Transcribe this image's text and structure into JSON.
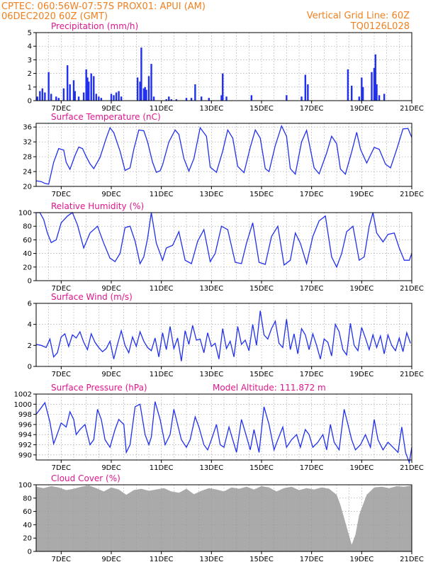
{
  "header": {
    "line1_left": "CPTEC:   060:56W-07:57S   PROX01: APUI (AM)",
    "line2_left": "06DEC2020 60Z (GMT)",
    "line1_right": "Vertical Grid Line: 60Z",
    "line2_right": "TQ0126L028"
  },
  "colors": {
    "header_text": "#f08020",
    "panel_title": "#e0168c",
    "series": "#2030ee",
    "cloud": "#aaaaaa",
    "grid": "#999999"
  },
  "x_axis": {
    "range_days": [
      6,
      21
    ],
    "tick_labels": [
      "7DEC",
      "9DEC",
      "11DEC",
      "13DEC",
      "15DEC",
      "17DEC",
      "19DEC",
      "21DEC"
    ],
    "tick_days": [
      7,
      9,
      11,
      13,
      15,
      17,
      19,
      21
    ],
    "grid": "dotted, every 12h"
  },
  "chart_data": [
    {
      "type": "bar",
      "title": "Precipitation (mm/h)",
      "ylim": [
        0,
        5
      ],
      "yticks": [
        "0",
        "1",
        "2",
        "3",
        "4",
        "5"
      ],
      "x_unit": "day of December 2020",
      "x": [
        6.05,
        6.15,
        6.25,
        6.35,
        6.5,
        6.6,
        6.8,
        6.9,
        7.1,
        7.25,
        7.35,
        7.5,
        7.55,
        7.7,
        7.9,
        8.0,
        8.05,
        8.1,
        8.2,
        8.3,
        8.4,
        8.5,
        8.6,
        9.0,
        9.1,
        9.2,
        9.3,
        9.4,
        10.05,
        10.15,
        10.2,
        10.3,
        10.35,
        10.4,
        10.5,
        10.6,
        10.7,
        11.2,
        11.3,
        11.4,
        11.6,
        12.0,
        12.2,
        12.35,
        12.6,
        12.9,
        13.4,
        13.45,
        13.6,
        14.6,
        16.0,
        16.6,
        16.75,
        16.85,
        18.45,
        18.6,
        18.9,
        19.0,
        19.05,
        19.4,
        19.5,
        19.55,
        19.6,
        19.7,
        19.9
      ],
      "values": [
        0.3,
        0.7,
        0.9,
        0.6,
        2.1,
        0.5,
        0.3,
        0.2,
        0.9,
        2.6,
        1.2,
        1.5,
        0.7,
        0.3,
        0.6,
        2.3,
        1.7,
        1.4,
        2.0,
        1.8,
        0.5,
        0.3,
        0.2,
        0.5,
        0.4,
        0.6,
        0.7,
        0.3,
        1.7,
        1.4,
        3.9,
        0.9,
        1.0,
        0.8,
        1.8,
        2.7,
        0.3,
        0.1,
        0.3,
        0.1,
        0.1,
        0.2,
        0.2,
        1.2,
        0.3,
        0.2,
        0.4,
        2.0,
        0.3,
        0.4,
        0.4,
        0.3,
        1.9,
        1.2,
        2.3,
        1.1,
        0.3,
        1.7,
        1.0,
        2.1,
        2.4,
        3.4,
        1.2,
        0.4,
        0.5
      ]
    },
    {
      "type": "line",
      "title": "Surface Temperature (nC)",
      "ylim": [
        20,
        37
      ],
      "yticks": [
        "20",
        "24",
        "28",
        "32",
        "36"
      ],
      "x_unit": "day of December 2020",
      "series": [
        {
          "x": [
            6.0,
            6.2,
            6.35,
            6.5,
            6.7,
            6.9,
            7.1,
            7.2,
            7.35,
            7.55,
            7.7,
            7.85,
            8.0,
            8.15,
            8.3,
            8.55,
            8.8,
            8.95,
            9.1,
            9.35,
            9.55,
            9.75,
            9.9,
            10.1,
            10.3,
            10.45,
            10.65,
            10.8,
            10.95,
            11.05,
            11.3,
            11.55,
            11.7,
            11.9,
            12.1,
            12.3,
            12.55,
            12.8,
            12.95,
            13.2,
            13.45,
            13.65,
            13.85,
            14.05,
            14.3,
            14.55,
            14.75,
            14.95,
            15.15,
            15.3,
            15.55,
            15.8,
            16.0,
            16.15,
            16.35,
            16.6,
            16.8,
            17.1,
            17.3,
            17.6,
            17.8,
            18.0,
            18.15,
            18.35,
            18.6,
            18.8,
            18.95,
            19.2,
            19.5,
            19.7,
            19.95,
            20.15,
            20.4,
            20.65,
            20.85,
            21.0
          ],
          "y": [
            21.5,
            21.3,
            20.8,
            20.6,
            26.5,
            30.2,
            29.8,
            26.5,
            24.6,
            28.3,
            30.6,
            30.2,
            28.0,
            26.1,
            24.8,
            27.8,
            33.0,
            35.8,
            34.5,
            29.5,
            24.3,
            25.0,
            30.0,
            35.2,
            35.0,
            32.0,
            26.5,
            23.8,
            24.2,
            25.8,
            32.0,
            35.2,
            34.0,
            27.5,
            24.1,
            27.5,
            35.8,
            33.5,
            25.2,
            23.8,
            29.5,
            35.2,
            33.0,
            25.4,
            23.7,
            30.5,
            35.2,
            33.0,
            24.8,
            24.0,
            31.0,
            36.3,
            33.5,
            24.8,
            23.3,
            32.0,
            35.1,
            25.0,
            23.4,
            29.0,
            33.5,
            31.5,
            24.7,
            23.3,
            29.3,
            34.6,
            30.0,
            26.3,
            30.5,
            30.0,
            26.0,
            25.0,
            30.0,
            35.5,
            35.6,
            33.2
          ]
        }
      ]
    },
    {
      "type": "line",
      "title": "Relative Humidity (%)",
      "ylim": [
        0,
        100
      ],
      "yticks": [
        "0",
        "20",
        "40",
        "60",
        "80",
        "100"
      ],
      "x_unit": "day of December 2020",
      "series": [
        {
          "x": [
            6.0,
            6.15,
            6.3,
            6.45,
            6.6,
            6.8,
            7.0,
            7.25,
            7.45,
            7.65,
            7.9,
            8.15,
            8.45,
            8.7,
            8.95,
            9.15,
            9.35,
            9.55,
            9.75,
            9.95,
            10.15,
            10.3,
            10.45,
            10.6,
            10.8,
            11.05,
            11.2,
            11.45,
            11.7,
            11.95,
            12.2,
            12.45,
            12.7,
            12.95,
            13.15,
            13.4,
            13.65,
            13.95,
            14.2,
            14.4,
            14.65,
            14.9,
            15.15,
            15.4,
            15.65,
            15.9,
            16.15,
            16.35,
            16.55,
            16.8,
            17.05,
            17.3,
            17.55,
            17.8,
            18.0,
            18.2,
            18.4,
            18.65,
            18.9,
            19.1,
            19.3,
            19.45,
            19.6,
            19.85,
            20.05,
            20.3,
            20.5,
            20.7,
            20.9,
            21.0
          ],
          "y": [
            100.0,
            100.0,
            90.0,
            70.0,
            56.0,
            60.0,
            85.0,
            95.0,
            100.0,
            82.0,
            48.0,
            70.0,
            80.0,
            55.0,
            33.0,
            28.0,
            40.0,
            78.0,
            80.0,
            58.0,
            25.0,
            35.0,
            62.0,
            100.0,
            55.0,
            30.0,
            48.0,
            52.0,
            72.0,
            30.0,
            25.0,
            58.0,
            75.0,
            28.0,
            40.0,
            80.0,
            75.0,
            27.0,
            25.0,
            55.0,
            85.0,
            27.0,
            24.0,
            65.0,
            80.0,
            23.0,
            30.0,
            70.0,
            55.0,
            25.0,
            65.0,
            88.0,
            95.0,
            35.0,
            20.0,
            40.0,
            72.0,
            80.0,
            30.0,
            35.0,
            80.0,
            100.0,
            70.0,
            57.0,
            68.0,
            70.0,
            48.0,
            30.0,
            30.0,
            40.0
          ]
        }
      ]
    },
    {
      "type": "line",
      "title": "Surface Wind (m/s)",
      "ylim": [
        0,
        6
      ],
      "yticks": [
        "0",
        "2",
        "4",
        "6"
      ],
      "x_unit": "day of December 2020",
      "series": [
        {
          "x": [
            6.0,
            6.2,
            6.4,
            6.55,
            6.7,
            6.85,
            7.0,
            7.15,
            7.3,
            7.45,
            7.6,
            7.75,
            7.9,
            8.05,
            8.2,
            8.35,
            8.5,
            8.65,
            8.8,
            8.95,
            9.1,
            9.25,
            9.4,
            9.55,
            9.7,
            9.85,
            10.0,
            10.15,
            10.3,
            10.45,
            10.6,
            10.75,
            10.9,
            11.05,
            11.2,
            11.35,
            11.5,
            11.65,
            11.8,
            11.95,
            12.1,
            12.25,
            12.4,
            12.55,
            12.7,
            12.85,
            13.0,
            13.15,
            13.3,
            13.45,
            13.6,
            13.75,
            13.9,
            14.05,
            14.2,
            14.35,
            14.5,
            14.65,
            14.8,
            14.95,
            15.1,
            15.25,
            15.4,
            15.55,
            15.7,
            15.85,
            16.0,
            16.15,
            16.3,
            16.45,
            16.6,
            16.75,
            16.9,
            17.05,
            17.2,
            17.35,
            17.5,
            17.65,
            17.8,
            17.95,
            18.1,
            18.25,
            18.4,
            18.55,
            18.7,
            18.85,
            19.0,
            19.15,
            19.3,
            19.45,
            19.6,
            19.75,
            19.9,
            20.05,
            20.2,
            20.35,
            20.5,
            20.65,
            20.8,
            20.95
          ],
          "y": [
            2.1,
            2.0,
            1.8,
            2.6,
            0.9,
            1.3,
            2.8,
            3.1,
            1.9,
            3.0,
            2.7,
            3.3,
            2.3,
            1.6,
            3.1,
            2.3,
            1.8,
            1.4,
            1.7,
            2.4,
            0.7,
            2.1,
            3.4,
            2.0,
            1.3,
            2.8,
            1.9,
            3.3,
            2.4,
            1.8,
            1.5,
            2.7,
            0.9,
            3.2,
            1.6,
            3.8,
            1.7,
            2.7,
            0.5,
            3.4,
            2.1,
            3.9,
            2.5,
            2.6,
            1.3,
            3.2,
            1.9,
            2.2,
            0.7,
            3.6,
            1.7,
            2.4,
            0.9,
            3.8,
            2.1,
            2.5,
            1.5,
            4.0,
            2.0,
            5.3,
            3.0,
            2.6,
            3.6,
            4.3,
            2.2,
            1.8,
            4.5,
            1.6,
            3.1,
            1.2,
            3.6,
            3.0,
            1.6,
            3.1,
            2.0,
            0.7,
            2.6,
            2.3,
            1.0,
            4.0,
            3.3,
            1.6,
            1.1,
            4.1,
            2.0,
            1.5,
            3.7,
            2.7,
            1.6,
            3.0,
            1.8,
            2.9,
            1.2,
            3.0,
            2.0,
            1.5,
            2.7,
            1.4,
            3.2,
            2.2
          ]
        }
      ]
    },
    {
      "type": "line",
      "title": "Surface Pressure (hPa)",
      "annotation": "Model Altitude: 111.872 m",
      "ylim": [
        989,
        1002
      ],
      "yticks": [
        "990",
        "992",
        "994",
        "996",
        "998",
        "1000",
        "1002"
      ],
      "x_unit": "day of December 2020",
      "series": [
        {
          "x": [
            6.0,
            6.2,
            6.35,
            6.55,
            6.7,
            6.8,
            7.0,
            7.2,
            7.35,
            7.5,
            7.6,
            7.75,
            7.95,
            8.15,
            8.3,
            8.45,
            8.6,
            8.75,
            8.95,
            9.15,
            9.3,
            9.5,
            9.6,
            9.75,
            9.95,
            10.15,
            10.35,
            10.5,
            10.6,
            10.75,
            10.95,
            11.15,
            11.35,
            11.5,
            11.65,
            11.8,
            12.0,
            12.15,
            12.35,
            12.5,
            12.7,
            12.85,
            13.0,
            13.2,
            13.35,
            13.5,
            13.7,
            13.85,
            14.0,
            14.2,
            14.35,
            14.55,
            14.7,
            14.9,
            15.1,
            15.3,
            15.5,
            15.65,
            15.85,
            16.0,
            16.2,
            16.4,
            16.55,
            16.75,
            16.9,
            17.05,
            17.25,
            17.45,
            17.6,
            17.75,
            17.9,
            18.1,
            18.3,
            18.45,
            18.6,
            18.75,
            18.95,
            19.15,
            19.35,
            19.5,
            19.65,
            19.85,
            20.05,
            20.25,
            20.45,
            20.6,
            20.75,
            20.9,
            21.0
          ],
          "y": [
            998.0,
            999.3,
            1000.3,
            996.5,
            992.2,
            993.5,
            996.3,
            995.5,
            998.5,
            997.0,
            994.0,
            995.0,
            996.0,
            992.0,
            993.0,
            999.0,
            997.0,
            993.0,
            991.5,
            995.0,
            997.0,
            996.0,
            990.5,
            992.0,
            999.5,
            1000.0,
            994.0,
            992.0,
            993.5,
            1000.5,
            997.0,
            992.0,
            994.0,
            999.0,
            996.0,
            993.0,
            991.5,
            993.0,
            997.5,
            995.5,
            992.0,
            991.0,
            993.0,
            996.0,
            992.0,
            991.5,
            995.5,
            993.0,
            990.5,
            997.0,
            994.5,
            991.0,
            995.0,
            990.5,
            999.5,
            996.0,
            991.0,
            993.0,
            995.5,
            991.5,
            993.0,
            994.0,
            991.5,
            995.0,
            994.0,
            991.5,
            992.5,
            994.0,
            991.0,
            996.0,
            992.5,
            991.0,
            999.0,
            996.0,
            993.0,
            991.0,
            992.0,
            994.0,
            991.5,
            997.0,
            993.0,
            991.0,
            992.5,
            991.5,
            990.5,
            995.5,
            990.5,
            988.5,
            991.5
          ]
        }
      ]
    },
    {
      "type": "area",
      "title": "Cloud Cover (%)",
      "ylim": [
        0,
        100
      ],
      "yticks": [
        "0",
        "20",
        "40",
        "60",
        "80",
        "100"
      ],
      "x_unit": "day of December 2020",
      "series": [
        {
          "x": [
            6.0,
            6.3,
            6.6,
            6.9,
            7.2,
            7.5,
            7.8,
            8.1,
            8.4,
            8.7,
            9.0,
            9.3,
            9.6,
            9.9,
            10.2,
            10.5,
            10.8,
            11.1,
            11.4,
            11.7,
            12.0,
            12.3,
            12.6,
            12.9,
            13.2,
            13.5,
            13.8,
            14.1,
            14.4,
            14.7,
            15.0,
            15.3,
            15.6,
            15.9,
            16.2,
            16.5,
            16.8,
            17.1,
            17.4,
            17.7,
            18.0,
            18.15,
            18.3,
            18.45,
            18.6,
            18.75,
            18.9,
            19.2,
            19.5,
            19.8,
            20.1,
            20.4,
            20.7,
            21.0
          ],
          "y": [
            97.0,
            95.0,
            98.0,
            96.0,
            92.0,
            94.0,
            97.0,
            99.0,
            95.0,
            90.0,
            96.0,
            93.0,
            85.0,
            92.0,
            94.0,
            91.0,
            93.0,
            95.0,
            90.0,
            88.0,
            94.0,
            86.0,
            91.0,
            95.0,
            93.0,
            90.0,
            96.0,
            94.0,
            97.0,
            93.0,
            98.0,
            96.0,
            90.0,
            95.0,
            97.0,
            92.0,
            95.0,
            93.0,
            96.0,
            94.0,
            85.0,
            70.0,
            50.0,
            30.0,
            10.0,
            25.0,
            55.0,
            85.0,
            96.0,
            97.0,
            95.0,
            98.0,
            97.0,
            99.0
          ]
        }
      ]
    }
  ]
}
